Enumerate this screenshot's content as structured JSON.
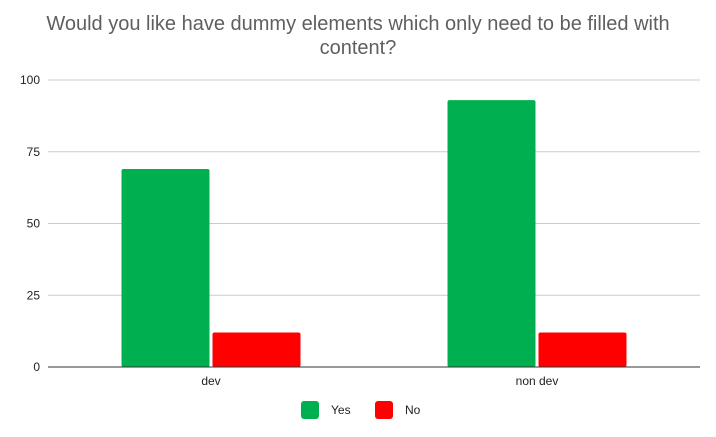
{
  "chart_data": {
    "type": "bar",
    "title": "Would you like have dummy elements which only need to be filled with content?",
    "title_lines": [
      "Would you like have dummy elements which only need to be filled with",
      "content?"
    ],
    "xlabel": "",
    "ylabel": "",
    "categories": [
      "dev",
      "non dev"
    ],
    "series": [
      {
        "name": "Yes",
        "color": "#00b050",
        "values": [
          69,
          93
        ]
      },
      {
        "name": "No",
        "color": "#ff0000",
        "values": [
          12,
          12
        ]
      }
    ],
    "ylim": [
      0,
      100
    ],
    "yticks": [
      "0",
      "25",
      "50",
      "75",
      "100"
    ],
    "grid": true,
    "legend_position": "bottom"
  }
}
